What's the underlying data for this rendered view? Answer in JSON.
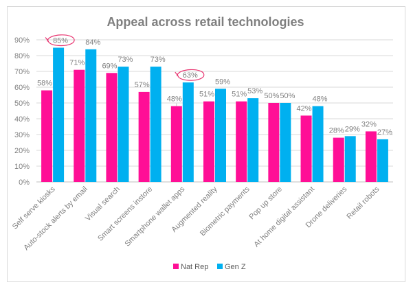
{
  "chart_data": {
    "type": "bar",
    "title": "Appeal across retail technologies",
    "categories": [
      "Self serve kiosks",
      "Auto-stock alerts by email",
      "Visual search",
      "Smart screens instore",
      "Smartphone wallet apps",
      "Augmented reality",
      "Biometric payments",
      "Pop up store",
      "At home digital assistant",
      "Drone deliveries",
      "Retail robots"
    ],
    "series": [
      {
        "name": "Nat Rep",
        "color": "#ff0f96",
        "values": [
          58,
          71,
          69,
          57,
          48,
          51,
          51,
          50,
          42,
          28,
          32
        ]
      },
      {
        "name": "Gen Z",
        "color": "#00b0f0",
        "values": [
          85,
          84,
          73,
          73,
          63,
          59,
          53,
          50,
          48,
          29,
          27
        ]
      }
    ],
    "value_suffix": "%",
    "ylim": [
      0,
      90
    ],
    "yticks": [
      "0%",
      "10%",
      "20%",
      "30%",
      "40%",
      "50%",
      "60%",
      "70%",
      "80%",
      "90%"
    ],
    "grid": true,
    "legend_position": "bottom",
    "highlighted_labels": [
      {
        "series": "Gen Z",
        "category": "Self serve kiosks"
      },
      {
        "series": "Gen Z",
        "category": "Smartphone wallet apps"
      }
    ]
  }
}
